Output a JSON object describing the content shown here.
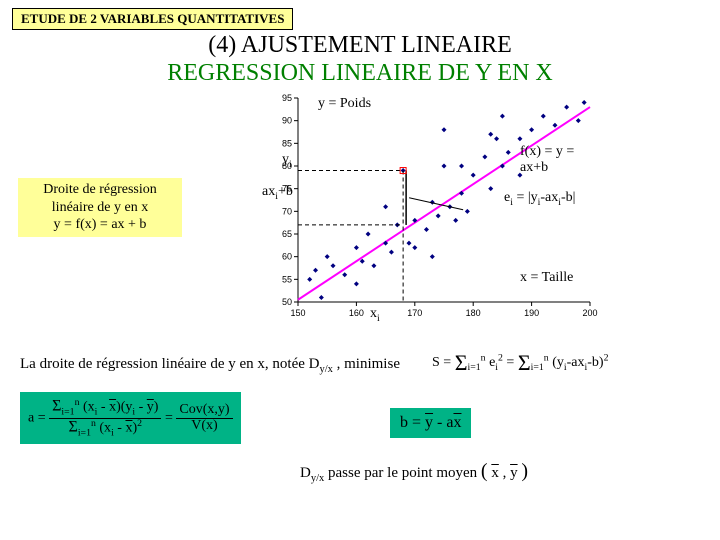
{
  "header_tag": "ETUDE DE 2 VARIABLES QUANTITATIVES",
  "title_line1": "(4) AJUSTEMENT LINEAIRE",
  "title_line2": "REGRESSION LINEAIRE DE Y EN X",
  "left_box": {
    "l1": "Droite de régression",
    "l2": "linéaire de y en x",
    "l3": "y = f(x) = ax + b"
  },
  "chart": {
    "x_ticks": [
      150,
      160,
      170,
      180,
      190,
      200
    ],
    "y_ticks": [
      50,
      55,
      60,
      65,
      70,
      75,
      80,
      85,
      90,
      95
    ],
    "y_extra_top": 95,
    "y_label_text": "y = Poids",
    "x_label_text": "x = Taille",
    "line_label": "f(x) = y = ax+b",
    "yi_label": "yi",
    "axib_label": "axi+b",
    "ei_label": "ei = |yi-axi-b|",
    "xi_label": "xi",
    "points": [
      [
        152,
        55
      ],
      [
        153,
        57
      ],
      [
        154,
        51
      ],
      [
        156,
        58
      ],
      [
        155,
        60
      ],
      [
        158,
        56
      ],
      [
        160,
        62
      ],
      [
        161,
        59
      ],
      [
        163,
        58
      ],
      [
        162,
        65
      ],
      [
        165,
        63
      ],
      [
        166,
        61
      ],
      [
        167,
        67
      ],
      [
        168,
        79
      ],
      [
        169,
        63
      ],
      [
        170,
        68
      ],
      [
        172,
        66
      ],
      [
        173,
        72
      ],
      [
        174,
        69
      ],
      [
        175,
        80
      ],
      [
        176,
        71
      ],
      [
        178,
        74
      ],
      [
        179,
        70
      ],
      [
        180,
        78
      ],
      [
        182,
        82
      ],
      [
        183,
        75
      ],
      [
        184,
        86
      ],
      [
        185,
        80
      ],
      [
        186,
        83
      ],
      [
        188,
        86
      ],
      [
        190,
        88
      ],
      [
        192,
        91
      ],
      [
        194,
        89
      ],
      [
        196,
        93
      ],
      [
        198,
        90
      ],
      [
        199,
        94
      ],
      [
        188,
        78
      ],
      [
        178,
        80
      ],
      [
        165,
        71
      ],
      [
        160,
        54
      ],
      [
        175,
        88
      ],
      [
        183,
        87
      ],
      [
        185,
        91
      ],
      [
        170,
        62
      ],
      [
        173,
        60
      ],
      [
        177,
        68
      ]
    ],
    "highlight_x": 168,
    "highlight_yi": 79,
    "highlight_fx": 67,
    "colors": {
      "point": "#000080",
      "line": "#ff00ff",
      "axis": "#000000",
      "dash": "#000000",
      "bg": "#ffffff"
    }
  },
  "bottom_sentence_a": "La droite de régression linéaire de y en x, notée  D",
  "bottom_sentence_b": " , minimise",
  "dyx_sub": "y/x",
  "formula_s_parts": {
    "S": "S",
    "eq": " = ",
    "sum1": "Σ",
    "i1": "i=1",
    "n": "n",
    "e": "e",
    "sq": "2",
    "sum2": "Σ",
    "inner": "(y",
    "inner2": "-ax",
    "inner3": "-b)"
  },
  "formula_a": {
    "a_eq": "a = ",
    "num": "Σ (xi - x̄)(yi - ȳ)",
    "den": "Σ (xi - x̄)²",
    "eq2": " = ",
    "cov": "Cov(x,y)",
    "vx": "V(x)"
  },
  "formula_b": "b = ȳ - a x̄",
  "pass_line": {
    "pre": "D",
    "sub": "y/x",
    "mid": "  passe par le point moyen ",
    "pt": "( x̄ , ȳ )"
  }
}
